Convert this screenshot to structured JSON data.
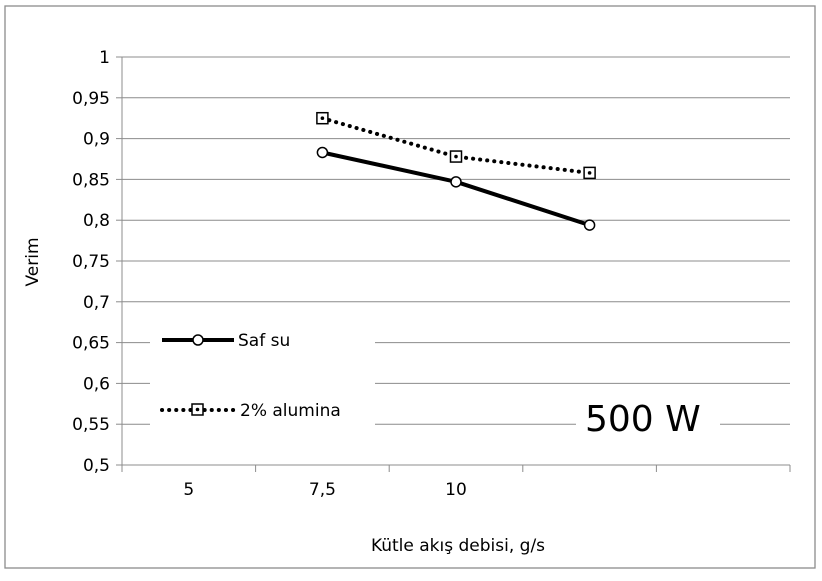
{
  "chart_data": {
    "type": "line",
    "title": "",
    "xlabel": "Kütle akış debisi, g/s",
    "ylabel": "Verim",
    "categories": [
      "5",
      "7,5",
      "10",
      "",
      ""
    ],
    "ylim": [
      0.5,
      1
    ],
    "yticks": [
      "0,5",
      "0,55",
      "0,6",
      "0,65",
      "0,7",
      "0,75",
      "0,8",
      "0,85",
      "0,9",
      "0,95",
      "1"
    ],
    "grid": true,
    "legend_position": "bottom-left",
    "series": [
      {
        "name": "Saf su",
        "style": "solid",
        "marker": "circle",
        "color": "#000000",
        "values": [
          null,
          0.883,
          0.847,
          0.794,
          null
        ]
      },
      {
        "name": "2% alumina",
        "style": "dotted",
        "marker": "square",
        "color": "#000000",
        "values": [
          null,
          0.925,
          0.878,
          0.858,
          null
        ]
      }
    ],
    "annotations": [
      "500 W"
    ]
  }
}
